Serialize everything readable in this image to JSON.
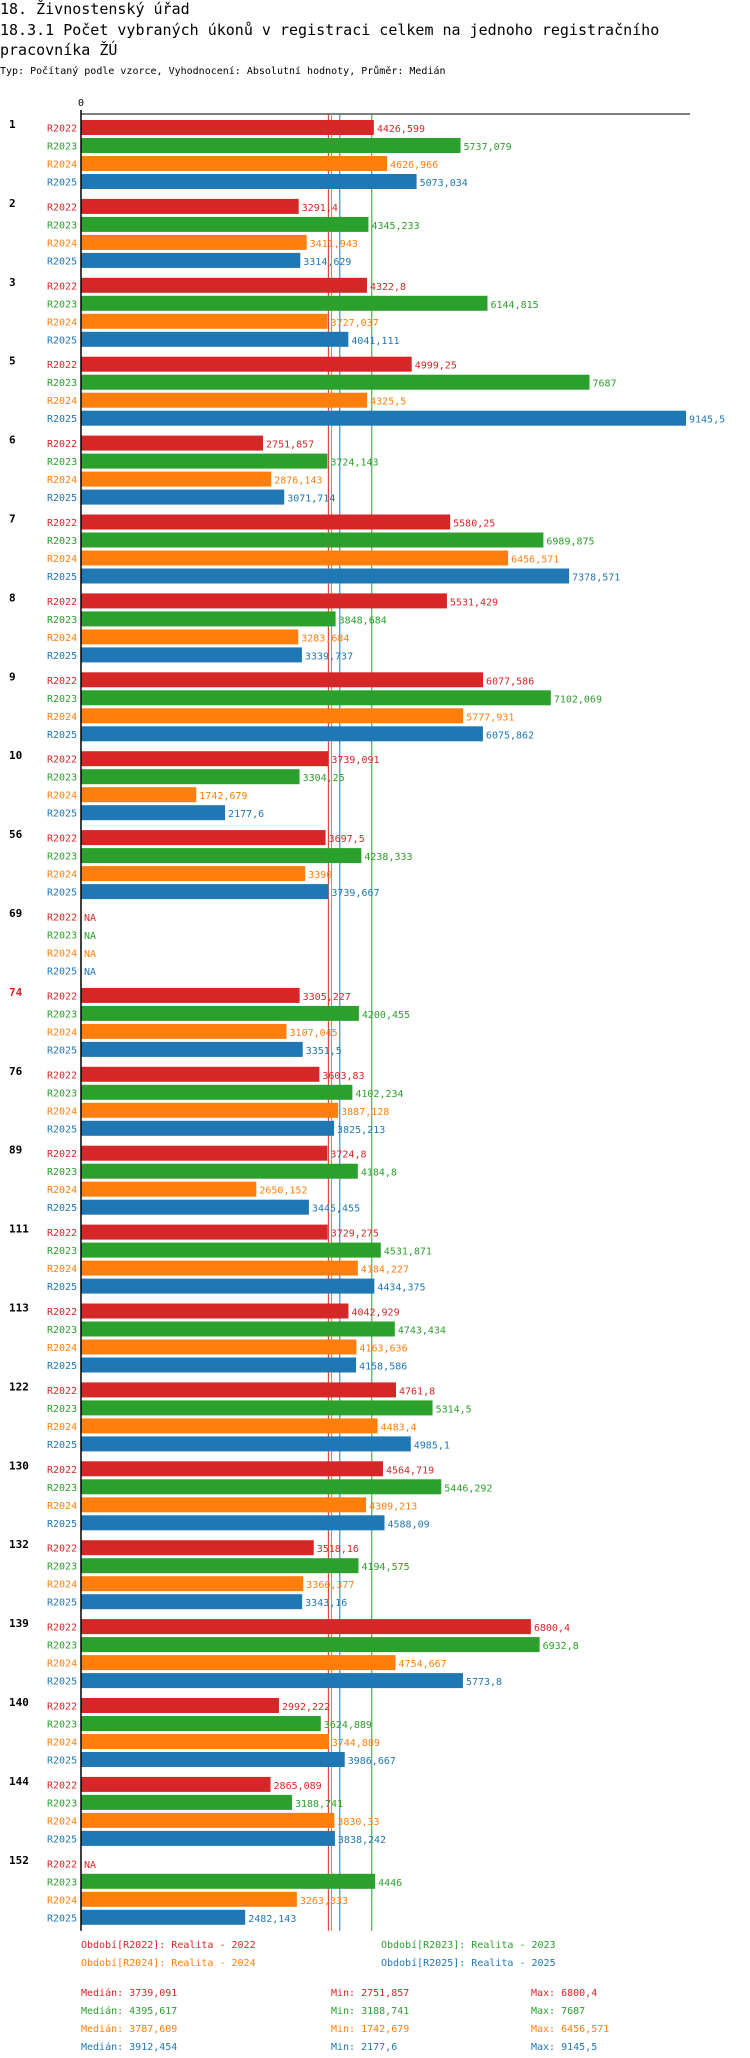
{
  "page": {
    "section_title": "18. Živnostenský úřad",
    "chart_title": "18.3.1 Počet vybraných úkonů v registraci celkem na jednoho registračního pracovníka ŽÚ",
    "subtitle": "Typ: Počítaný podle vzorce, Vyhodnocení: Absolutní hodnoty, Průměr: Medián"
  },
  "colors": {
    "R2022": "#d62728",
    "R2023": "#2ca02c",
    "R2024": "#ff7f0e",
    "R2025": "#1f77b4",
    "highlight_group": "#d62728"
  },
  "legend": [
    {
      "series": "R2022",
      "label": "Období[R2022]: Realita - 2022"
    },
    {
      "series": "R2023",
      "label": "Období[R2023]: Realita - 2023"
    },
    {
      "series": "R2024",
      "label": "Období[R2024]: Realita - 2024"
    },
    {
      "series": "R2025",
      "label": "Období[R2025]: Realita - 2025"
    }
  ],
  "stats": [
    {
      "series": "R2022",
      "median": "Medián: 3739,091",
      "min": "Min: 2751,857",
      "max": "Max: 6800,4"
    },
    {
      "series": "R2023",
      "median": "Medián: 4395,617",
      "min": "Min: 3188,741",
      "max": "Max: 7687"
    },
    {
      "series": "R2024",
      "median": "Medián: 3787,609",
      "min": "Min: 1742,679",
      "max": "Max: 6456,571"
    },
    {
      "series": "R2025",
      "median": "Medián: 3912,454",
      "min": "Min: 2177,6",
      "max": "Max: 9145,5"
    }
  ],
  "chart_data": {
    "type": "bar",
    "orientation": "horizontal",
    "title": "18.3.1 Počet vybraných úkonů v registraci celkem na jednoho registračního pracovníka ŽÚ",
    "axis_zero_label": "0",
    "xlim": [
      0,
      9145.5
    ],
    "series_names": [
      "R2022",
      "R2023",
      "R2024",
      "R2025"
    ],
    "medians": [
      3739.091,
      4395.617,
      3787.609,
      3912.454
    ],
    "highlight_group": "74",
    "groups": [
      {
        "id": "1",
        "values": [
          4426.599,
          5737.079,
          4626.966,
          5073.034
        ],
        "labels": [
          "4426,599",
          "5737,079",
          "4626,966",
          "5073,034"
        ]
      },
      {
        "id": "2",
        "values": [
          3291.4,
          4345.233,
          3411.943,
          3314.629
        ],
        "labels": [
          "3291,4",
          "4345,233",
          "3411,943",
          "3314,629"
        ]
      },
      {
        "id": "3",
        "values": [
          4322.8,
          6144.815,
          3727.037,
          4041.111
        ],
        "labels": [
          "4322,8",
          "6144,815",
          "3727,037",
          "4041,111"
        ]
      },
      {
        "id": "5",
        "values": [
          4999.25,
          7687,
          4325.5,
          9145.5
        ],
        "labels": [
          "4999,25",
          "7687",
          "4325,5",
          "9145,5"
        ]
      },
      {
        "id": "6",
        "values": [
          2751.857,
          3724.143,
          2876.143,
          3071.714
        ],
        "labels": [
          "2751,857",
          "3724,143",
          "2876,143",
          "3071,714"
        ]
      },
      {
        "id": "7",
        "values": [
          5580.25,
          6989.875,
          6456.571,
          7378.571
        ],
        "labels": [
          "5580,25",
          "6989,875",
          "6456,571",
          "7378,571"
        ]
      },
      {
        "id": "8",
        "values": [
          5531.429,
          3848.684,
          3283.684,
          3339.737
        ],
        "labels": [
          "5531,429",
          "3848,684",
          "3283,684",
          "3339,737"
        ]
      },
      {
        "id": "9",
        "values": [
          6077.586,
          7102.069,
          5777.931,
          6075.862
        ],
        "labels": [
          "6077,586",
          "7102,069",
          "5777,931",
          "6075,862"
        ]
      },
      {
        "id": "10",
        "values": [
          3739.091,
          3304.25,
          1742.679,
          2177.6
        ],
        "labels": [
          "3739,091",
          "3304,25",
          "1742,679",
          "2177,6"
        ]
      },
      {
        "id": "56",
        "values": [
          3697.5,
          4238.333,
          3390,
          3739.667
        ],
        "labels": [
          "3697,5",
          "4238,333",
          "3390",
          "3739,667"
        ]
      },
      {
        "id": "69",
        "values": [
          null,
          null,
          null,
          null
        ],
        "labels": [
          "NA",
          "NA",
          "NA",
          "NA"
        ]
      },
      {
        "id": "74",
        "values": [
          3305.227,
          4200.455,
          3107.045,
          3351.5
        ],
        "labels": [
          "3305,227",
          "4200,455",
          "3107,045",
          "3351,5"
        ]
      },
      {
        "id": "76",
        "values": [
          3603.83,
          4102.234,
          3887.128,
          3825.213
        ],
        "labels": [
          "3603,83",
          "4102,234",
          "3887,128",
          "3825,213"
        ]
      },
      {
        "id": "89",
        "values": [
          3724.8,
          4184.8,
          2650.152,
          3445.455
        ],
        "labels": [
          "3724,8",
          "4184,8",
          "2650,152",
          "3445,455"
        ]
      },
      {
        "id": "111",
        "values": [
          3729.275,
          4531.871,
          4184.227,
          4434.375
        ],
        "labels": [
          "3729,275",
          "4531,871",
          "4184,227",
          "4434,375"
        ]
      },
      {
        "id": "113",
        "values": [
          4042.929,
          4743.434,
          4163.636,
          4158.586
        ],
        "labels": [
          "4042,929",
          "4743,434",
          "4163,636",
          "4158,586"
        ]
      },
      {
        "id": "122",
        "values": [
          4761.8,
          5314.5,
          4483.4,
          4985.1
        ],
        "labels": [
          "4761,8",
          "5314,5",
          "4483,4",
          "4985,1"
        ]
      },
      {
        "id": "130",
        "values": [
          4564.719,
          5446.292,
          4309.213,
          4588.09
        ],
        "labels": [
          "4564,719",
          "5446,292",
          "4309,213",
          "4588,09"
        ]
      },
      {
        "id": "132",
        "values": [
          3518.16,
          4194.575,
          3360.377,
          3343.16
        ],
        "labels": [
          "3518,16",
          "4194,575",
          "3360,377",
          "3343,16"
        ]
      },
      {
        "id": "139",
        "values": [
          6800.4,
          6932.8,
          4754.667,
          5773.8
        ],
        "labels": [
          "6800,4",
          "6932,8",
          "4754,667",
          "5773,8"
        ]
      },
      {
        "id": "140",
        "values": [
          2992.222,
          3624.889,
          3744.889,
          3986.667
        ],
        "labels": [
          "2992,222",
          "3624,889",
          "3744,889",
          "3986,667"
        ]
      },
      {
        "id": "144",
        "values": [
          2865.089,
          3188.741,
          3830.33,
          3838.242
        ],
        "labels": [
          "2865,089",
          "3188,741",
          "3830,33",
          "3838,242"
        ]
      },
      {
        "id": "152",
        "values": [
          null,
          4446,
          3263.333,
          2482.143
        ],
        "labels": [
          "NA",
          "4446",
          "3263,333",
          "2482,143"
        ]
      }
    ]
  }
}
